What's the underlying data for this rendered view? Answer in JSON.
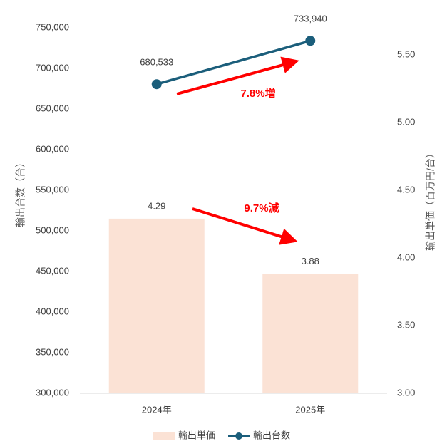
{
  "chart_data": {
    "type": "combo",
    "y_label": "輸出台数（台）",
    "y2_label": "輸出単価（百万円/台）",
    "categories": [
      "2024年",
      "2025年"
    ],
    "series": [
      {
        "name": "輸出単価",
        "type": "bar",
        "axis": "y2",
        "color": "#fbe2d5",
        "values": [
          4.29,
          3.88
        ]
      },
      {
        "name": "輸出台数",
        "type": "line",
        "color": "#1b5e7b",
        "values": [
          680533,
          733940
        ],
        "value_labels": [
          "680,533",
          "733,940"
        ]
      }
    ],
    "ylim": [
      300000,
      750000
    ],
    "yticks": [
      {
        "value": 300000,
        "label": "300,000"
      },
      {
        "value": 350000,
        "label": "350,000"
      },
      {
        "value": 400000,
        "label": "400,000"
      },
      {
        "value": 450000,
        "label": "450,000"
      },
      {
        "value": 500000,
        "label": "500,000"
      },
      {
        "value": 550000,
        "label": "550,000"
      },
      {
        "value": 600000,
        "label": "600,000"
      },
      {
        "value": 650000,
        "label": "650,000"
      },
      {
        "value": 700000,
        "label": "700,000"
      },
      {
        "value": 750000,
        "label": "750,000"
      }
    ],
    "y2lim": [
      3,
      5.7
    ],
    "y2ticks": [
      {
        "value": 3,
        "label": "3.00"
      },
      {
        "value": 3.5,
        "label": "3.50"
      },
      {
        "value": 4,
        "label": "4.00"
      },
      {
        "value": 4.5,
        "label": "4.50"
      },
      {
        "value": 5,
        "label": "5.00"
      },
      {
        "value": 5.5,
        "label": "5.50"
      }
    ],
    "annotations": [
      "7.8%増",
      "9.7%減"
    ],
    "grid": false,
    "legend": "bottom"
  }
}
